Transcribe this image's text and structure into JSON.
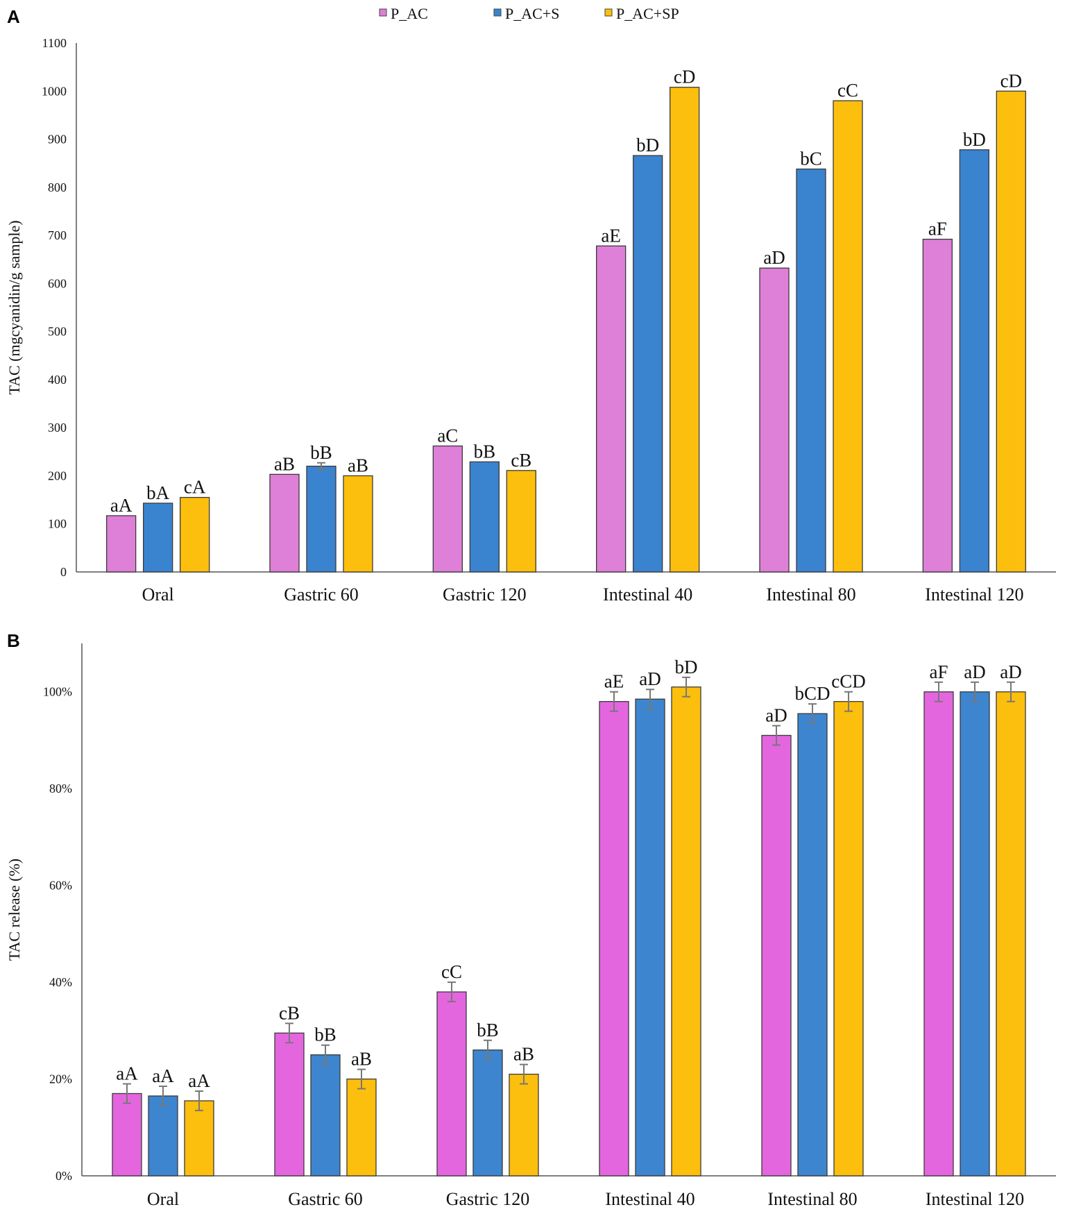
{
  "legend": [
    {
      "name": "P_AC",
      "color": "#de7fd8"
    },
    {
      "name": "P_AC+S",
      "color": "#3a83cf"
    },
    {
      "name": "P_AC+SP",
      "color": "#fdbf0d"
    }
  ],
  "chart_data": [
    {
      "panel": "A",
      "type": "bar",
      "title": "",
      "xlabel": "",
      "ylabel": "TAC (mgcyanidin/g sample)",
      "ylim": [
        0,
        1100
      ],
      "yticks": [
        0,
        100,
        200,
        300,
        400,
        500,
        600,
        700,
        800,
        900,
        1000,
        1100
      ],
      "ytick_labels": [
        "0",
        "100",
        "200",
        "300",
        "400",
        "500",
        "600",
        "700",
        "800",
        "900",
        "1000",
        "1100"
      ],
      "grid": false,
      "legend_position": "top-center",
      "categories": [
        "Oral",
        "Gastric 60",
        "Gastric 120",
        "Intestinal 40",
        "Intestinal 80",
        "Intestinal 120"
      ],
      "series": [
        {
          "name": "P_AC",
          "color": "#de7fd8",
          "values": [
            117,
            203,
            262,
            678,
            632,
            692
          ],
          "errors": [
            0,
            0,
            0,
            0,
            0,
            0
          ],
          "labels": [
            "aA",
            "aB",
            "aC",
            "aE",
            "aD",
            "aF"
          ]
        },
        {
          "name": "P_AC+S",
          "color": "#3a83cf",
          "values": [
            143,
            220,
            229,
            866,
            838,
            878
          ],
          "errors": [
            0,
            7,
            0,
            0,
            0,
            0
          ],
          "labels": [
            "bA",
            "bB",
            "bB",
            "bD",
            "bC",
            "bD"
          ]
        },
        {
          "name": "P_AC+SP",
          "color": "#fdbf0d",
          "values": [
            155,
            200,
            211,
            1008,
            980,
            1000
          ],
          "errors": [
            0,
            0,
            0,
            0,
            0,
            0
          ],
          "labels": [
            "cA",
            "aB",
            "cB",
            "cD",
            "cC",
            "cD"
          ]
        }
      ]
    },
    {
      "panel": "B",
      "type": "bar",
      "title": "",
      "xlabel": "",
      "ylabel": "TAC release (%)",
      "ylim": [
        0,
        110
      ],
      "yticks": [
        0,
        20,
        40,
        60,
        80,
        100
      ],
      "ytick_labels": [
        "0%",
        "20%",
        "40%",
        "60%",
        "80%",
        "100%"
      ],
      "grid": false,
      "categories": [
        "Oral",
        "Gastric 60",
        "Gastric 120",
        "Intestinal 40",
        "Intestinal 80",
        "Intestinal 120"
      ],
      "series": [
        {
          "name": "P_AC",
          "color": "#e466df",
          "values": [
            17,
            29.5,
            38,
            98,
            91,
            100
          ],
          "errors": [
            2,
            2,
            2,
            2,
            2,
            2
          ],
          "labels": [
            "aA",
            "cB",
            "cC",
            "aE",
            "aD",
            "aF"
          ]
        },
        {
          "name": "P_AC+S",
          "color": "#3d86cf",
          "values": [
            16.5,
            25,
            26,
            98.5,
            95.5,
            100
          ],
          "errors": [
            2,
            2,
            2,
            2,
            2,
            2
          ],
          "labels": [
            "aA",
            "bB",
            "bB",
            "aD",
            "bCD",
            "aD"
          ]
        },
        {
          "name": "P_AC+SP",
          "color": "#fdbf0d",
          "values": [
            15.5,
            20,
            21,
            101,
            98,
            100
          ],
          "errors": [
            2,
            2,
            2,
            2,
            2,
            2
          ],
          "labels": [
            "aA",
            "aB",
            "aB",
            "bD",
            "cCD",
            "aD"
          ]
        }
      ]
    }
  ]
}
